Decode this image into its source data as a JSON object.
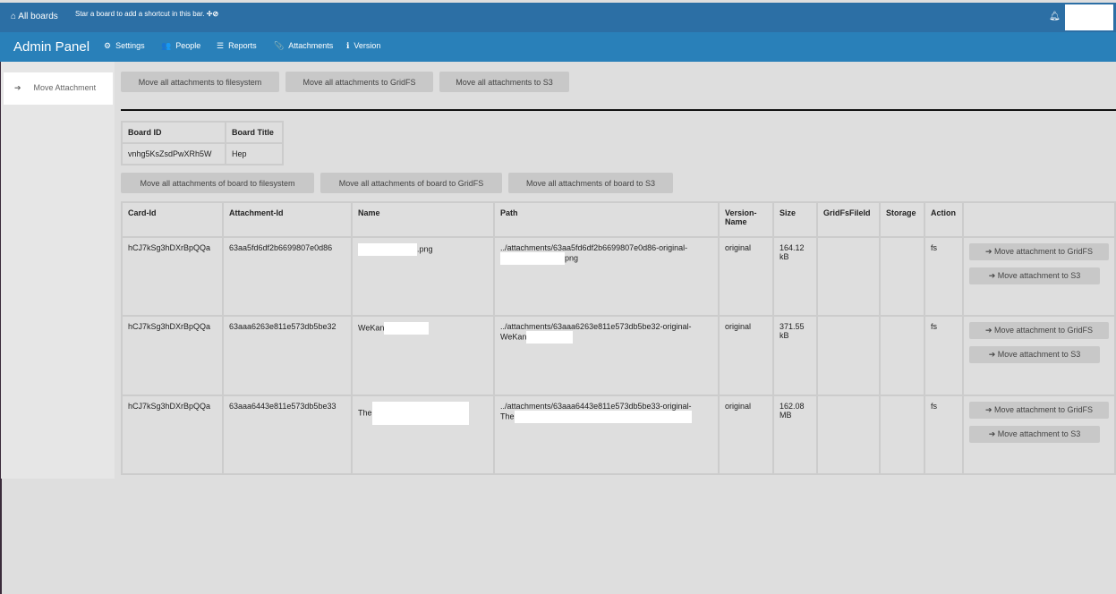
{
  "topbar": {
    "all_boards": "All boards",
    "hint": "Star a board to add a shortcut in this bar.",
    "hint_icons": "✢⊘"
  },
  "header": {
    "title": "Admin Panel",
    "nav": [
      {
        "icon": "⚙",
        "label": "Settings"
      },
      {
        "icon": "👥",
        "label": "People"
      },
      {
        "icon": "☰",
        "label": "Reports"
      },
      {
        "icon": "📎",
        "label": "Attachments"
      },
      {
        "icon": "ℹ",
        "label": "Version"
      }
    ]
  },
  "sidebar": {
    "item": "Move Attachment"
  },
  "global_buttons": [
    "Move all attachments to filesystem",
    "Move all attachments to GridFS",
    "Move all attachments to S3"
  ],
  "board_table": {
    "headers": [
      "Board ID",
      "Board Title"
    ],
    "row": [
      "vnhg5KsZsdPwXRh5W",
      "Hep"
    ]
  },
  "board_buttons": [
    "Move all attachments of board to filesystem",
    "Move all attachments of board to GridFS",
    "Move all attachments of board to S3"
  ],
  "att_table": {
    "headers": [
      "Card-Id",
      "Attachment-Id",
      "Name",
      "Path",
      "Version-Name",
      "Size",
      "GridFsFileId",
      "Storage",
      "Action"
    ],
    "rows": [
      {
        "card": "hCJ7kSg3hDXrBpQQa",
        "att": "63aa5fd6df2b6699807e0d86",
        "name": ".png",
        "path": "../attachments/63aa5fd6df2b6699807e0d86-original-",
        "path2": "png",
        "version": "original",
        "size": "164.12 kB",
        "storage": "fs"
      },
      {
        "card": "hCJ7kSg3hDXrBpQQa",
        "att": "63aaa6263e811e573db5be32",
        "name": "WeKan",
        "path": "../attachments/63aaa6263e811e573db5be32-original-",
        "path2": "WeKan",
        "version": "original",
        "size": "371.55 kB",
        "storage": "fs"
      },
      {
        "card": "hCJ7kSg3hDXrBpQQa",
        "att": "63aaa6443e811e573db5be33",
        "name": "The",
        "path": "../attachments/63aaa6443e811e573db5be33-original-",
        "path2": "The",
        "version": "original",
        "size": "162.08 MB",
        "storage": "fs"
      }
    ],
    "action_gridfs": "Move attachment to GridFS",
    "action_s3": "Move attachment to S3"
  }
}
